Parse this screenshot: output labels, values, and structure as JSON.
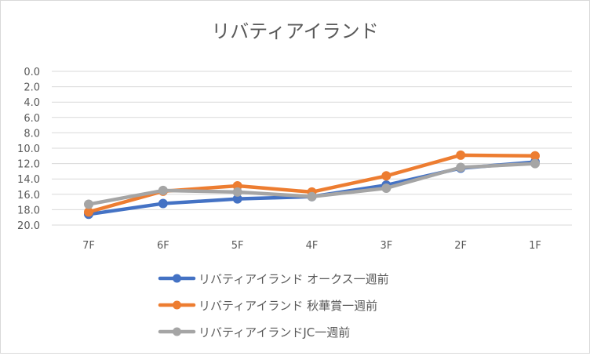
{
  "chart_data": {
    "type": "line",
    "title": "リバティアイランド",
    "xlabel": "",
    "ylabel": "",
    "categories": [
      "7F",
      "6F",
      "5F",
      "4F",
      "3F",
      "2F",
      "1F"
    ],
    "y_axis": {
      "min": 0,
      "max": 20,
      "step": 2,
      "reversed": true,
      "tick_labels": [
        "0.0",
        "2.0",
        "4.0",
        "6.0",
        "8.0",
        "10.0",
        "12.0",
        "14.0",
        "16.0",
        "18.0",
        "20.0"
      ]
    },
    "grid": true,
    "legend_position": "bottom",
    "series": [
      {
        "name": "リバティアイランド オークス一週前",
        "color": "#4472c4",
        "values": [
          18.6,
          17.2,
          16.6,
          16.3,
          14.8,
          12.6,
          11.8
        ]
      },
      {
        "name": "リバティアイランド 秋華賞一週前",
        "color": "#ed7d31",
        "values": [
          18.3,
          15.6,
          14.9,
          15.7,
          13.6,
          10.9,
          11.0
        ]
      },
      {
        "name": "リバティアイランドJC一週前",
        "color": "#a5a5a5",
        "values": [
          17.3,
          15.5,
          15.7,
          16.3,
          15.2,
          12.5,
          12.0
        ]
      }
    ]
  }
}
